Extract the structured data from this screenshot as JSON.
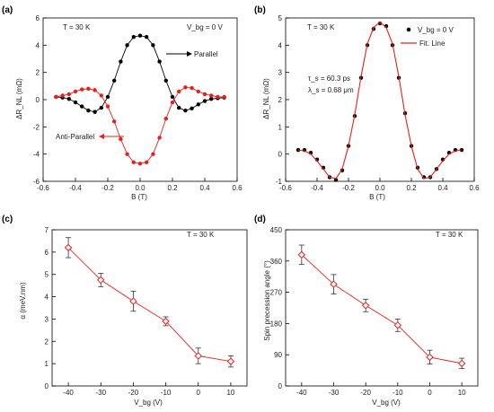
{
  "chart_data": [
    {
      "panel": "(a)",
      "type": "line",
      "xlabel": "B (T)",
      "ylabel": "ΔR_NL (mΩ)",
      "xlim": [
        -0.6,
        0.6
      ],
      "ylim": [
        -6,
        6
      ],
      "xticks": [
        "-0.6",
        "-0.4",
        "-0.2",
        "0.0",
        "0.2",
        "0.4",
        "0.6"
      ],
      "yticks": [
        "-6",
        "-4",
        "-2",
        "0",
        "2",
        "4",
        "6"
      ],
      "annotations": [
        "T = 30 K",
        "V_bg = 0 V",
        "Parallel",
        "Anti-Parallel"
      ],
      "series": [
        {
          "name": "Parallel",
          "color": "#000000",
          "x": [
            -0.52,
            -0.48,
            -0.44,
            -0.4,
            -0.36,
            -0.32,
            -0.28,
            -0.24,
            -0.2,
            -0.16,
            -0.12,
            -0.08,
            -0.04,
            0.0,
            0.04,
            0.08,
            0.12,
            0.16,
            0.2,
            0.24,
            0.28,
            0.32,
            0.36,
            0.4,
            0.44,
            0.48,
            0.52
          ],
          "values": [
            0.2,
            0.15,
            0.05,
            -0.2,
            -0.5,
            -0.8,
            -0.9,
            -0.6,
            0.2,
            1.4,
            2.8,
            4.0,
            4.6,
            4.7,
            4.6,
            4.0,
            2.8,
            1.4,
            0.2,
            -0.6,
            -0.8,
            -0.65,
            -0.35,
            -0.1,
            0.05,
            0.1,
            0.15
          ]
        },
        {
          "name": "Anti-Parallel",
          "color": "#e8201a",
          "x": [
            -0.52,
            -0.48,
            -0.44,
            -0.4,
            -0.36,
            -0.32,
            -0.28,
            -0.24,
            -0.2,
            -0.16,
            -0.12,
            -0.08,
            -0.04,
            0.0,
            0.04,
            0.08,
            0.12,
            0.16,
            0.2,
            0.24,
            0.28,
            0.32,
            0.36,
            0.4,
            0.44,
            0.48,
            0.52
          ],
          "values": [
            0.2,
            0.3,
            0.4,
            0.6,
            0.75,
            0.8,
            0.7,
            0.3,
            -0.5,
            -1.6,
            -2.9,
            -4.0,
            -4.6,
            -4.7,
            -4.6,
            -4.0,
            -2.8,
            -1.4,
            -0.2,
            0.6,
            0.9,
            0.85,
            0.6,
            0.4,
            0.3,
            0.2,
            0.2
          ]
        }
      ]
    },
    {
      "panel": "(b)",
      "type": "scatter",
      "xlabel": "B (T)",
      "ylabel": "ΔR_NL (mΩ)",
      "xlim": [
        -0.6,
        0.6
      ],
      "ylim": [
        -1,
        5
      ],
      "xticks": [
        "-0.6",
        "-0.4",
        "-0.2",
        "0.0",
        "0.2",
        "0.4",
        "0.6"
      ],
      "yticks": [
        "-1",
        "0",
        "1",
        "2",
        "3",
        "4",
        "5"
      ],
      "annotations": [
        "T = 30 K",
        "τ_s = 60.3 ps",
        "λ_s = 0.68 μm"
      ],
      "legend": [
        "V_bg = 0 V",
        "Fit. Line"
      ],
      "series": [
        {
          "name": "V_bg = 0 V",
          "color": "#000000",
          "x": [
            -0.52,
            -0.48,
            -0.44,
            -0.4,
            -0.36,
            -0.32,
            -0.28,
            -0.24,
            -0.2,
            -0.16,
            -0.12,
            -0.08,
            -0.04,
            0.0,
            0.04,
            0.08,
            0.12,
            0.16,
            0.2,
            0.24,
            0.28,
            0.32,
            0.36,
            0.4,
            0.44,
            0.48,
            0.52
          ],
          "values": [
            0.15,
            0.15,
            0.05,
            -0.2,
            -0.5,
            -0.85,
            -0.95,
            -0.6,
            0.3,
            1.4,
            2.8,
            4.0,
            4.6,
            4.8,
            4.7,
            4.0,
            2.8,
            1.5,
            0.3,
            -0.5,
            -0.85,
            -0.85,
            -0.55,
            -0.2,
            0.05,
            0.15,
            0.15
          ]
        },
        {
          "name": "Fit. Line",
          "color": "#e8201a",
          "x": [
            -0.52,
            -0.48,
            -0.44,
            -0.4,
            -0.36,
            -0.32,
            -0.28,
            -0.24,
            -0.2,
            -0.16,
            -0.12,
            -0.08,
            -0.04,
            0.0,
            0.04,
            0.08,
            0.12,
            0.16,
            0.2,
            0.24,
            0.28,
            0.32,
            0.36,
            0.4,
            0.44,
            0.48,
            0.52
          ],
          "values": [
            0.15,
            0.12,
            0.0,
            -0.25,
            -0.55,
            -0.85,
            -0.9,
            -0.55,
            0.3,
            1.45,
            2.85,
            4.05,
            4.65,
            4.85,
            4.65,
            4.05,
            2.85,
            1.45,
            0.3,
            -0.55,
            -0.9,
            -0.85,
            -0.55,
            -0.25,
            0.0,
            0.12,
            0.15
          ]
        }
      ]
    },
    {
      "panel": "(c)",
      "type": "line",
      "xlabel": "V_bg (V)",
      "ylabel": "α (meV.nm)",
      "xlim": [
        -45,
        15
      ],
      "ylim": [
        0,
        7
      ],
      "xticks": [
        "-40",
        "-30",
        "-20",
        "-10",
        "0",
        "10"
      ],
      "yticks": [
        "0",
        "1",
        "2",
        "3",
        "4",
        "5",
        "6",
        "7"
      ],
      "annotations": [
        "T = 30 K"
      ],
      "series": [
        {
          "name": "",
          "color": "#e8201a",
          "x": [
            -40,
            -30,
            -20,
            -10,
            0,
            10
          ],
          "values": [
            6.2,
            4.75,
            3.8,
            2.9,
            1.35,
            1.1
          ],
          "errors": [
            0.45,
            0.3,
            0.45,
            0.2,
            0.35,
            0.25
          ]
        }
      ]
    },
    {
      "panel": "(d)",
      "type": "line",
      "xlabel": "V_bg (V)",
      "ylabel": "Spin precession angle (°)",
      "xlim": [
        -45,
        15
      ],
      "ylim": [
        0,
        450
      ],
      "xticks": [
        "-40",
        "-30",
        "-20",
        "-10",
        "0",
        "10"
      ],
      "yticks": [
        "0",
        "90",
        "180",
        "270",
        "360",
        "450"
      ],
      "annotations": [
        "T = 30 K"
      ],
      "series": [
        {
          "name": "",
          "color": "#e8201a",
          "x": [
            -40,
            -30,
            -20,
            -10,
            0,
            10
          ],
          "values": [
            378,
            293,
            232,
            175,
            83,
            65
          ],
          "errors": [
            28,
            28,
            18,
            18,
            20,
            15
          ]
        }
      ]
    }
  ]
}
